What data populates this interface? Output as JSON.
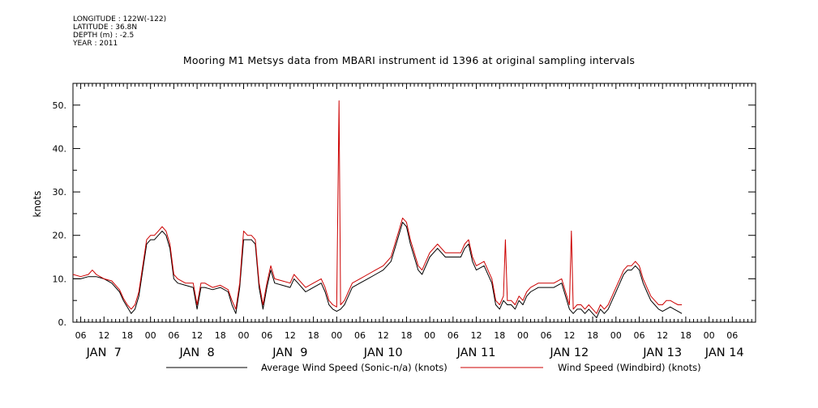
{
  "meta": {
    "longitude": "LONGITUDE : 122W(-122)",
    "latitude": "LATITUDE : 36.8N",
    "depth": "DEPTH (m) : -2.5",
    "year": "YEAR : 2011"
  },
  "chart_data": {
    "type": "line",
    "title": "Mooring M1 Metsys data from MBARI instrument id 1396 at original sampling intervals",
    "ylabel": "knots",
    "xlabel": "",
    "ylim": [
      0,
      55
    ],
    "yticks": [
      0,
      10,
      20,
      30,
      40,
      50
    ],
    "ytick_labels": [
      "0.",
      "10.",
      "20.",
      "30.",
      "40.",
      "50."
    ],
    "xlim_hours": [
      4,
      180
    ],
    "x_units": "hours since 2011-01-07 00:00",
    "xtick_hour_labels": [
      {
        "x": 6,
        "label": "06"
      },
      {
        "x": 12,
        "label": "12"
      },
      {
        "x": 18,
        "label": "18"
      },
      {
        "x": 24,
        "label": "00"
      },
      {
        "x": 30,
        "label": "06"
      },
      {
        "x": 36,
        "label": "12"
      },
      {
        "x": 42,
        "label": "18"
      },
      {
        "x": 48,
        "label": "00"
      },
      {
        "x": 54,
        "label": "06"
      },
      {
        "x": 60,
        "label": "12"
      },
      {
        "x": 66,
        "label": "18"
      },
      {
        "x": 72,
        "label": "00"
      },
      {
        "x": 78,
        "label": "06"
      },
      {
        "x": 84,
        "label": "12"
      },
      {
        "x": 90,
        "label": "18"
      },
      {
        "x": 96,
        "label": "00"
      },
      {
        "x": 102,
        "label": "06"
      },
      {
        "x": 108,
        "label": "12"
      },
      {
        "x": 114,
        "label": "18"
      },
      {
        "x": 120,
        "label": "00"
      },
      {
        "x": 126,
        "label": "06"
      },
      {
        "x": 132,
        "label": "12"
      },
      {
        "x": 138,
        "label": "18"
      },
      {
        "x": 144,
        "label": "00"
      },
      {
        "x": 150,
        "label": "06"
      },
      {
        "x": 156,
        "label": "12"
      },
      {
        "x": 162,
        "label": "18"
      },
      {
        "x": 168,
        "label": "00"
      },
      {
        "x": 174,
        "label": "06"
      }
    ],
    "day_labels": [
      {
        "x": 12,
        "label": "JAN  7"
      },
      {
        "x": 36,
        "label": "JAN  8"
      },
      {
        "x": 60,
        "label": "JAN  9"
      },
      {
        "x": 84,
        "label": "JAN 10"
      },
      {
        "x": 108,
        "label": "JAN 11"
      },
      {
        "x": 132,
        "label": "JAN 12"
      },
      {
        "x": 156,
        "label": "JAN 13"
      },
      {
        "x": 172,
        "label": "JAN 14"
      }
    ],
    "legend_position": "bottom",
    "series": [
      {
        "name": "Average Wind Speed (Sonic-n/a) (knots)",
        "color": "#000000",
        "points": [
          [
            4,
            10
          ],
          [
            6,
            10
          ],
          [
            8,
            10.5
          ],
          [
            10,
            10.5
          ],
          [
            12,
            10
          ],
          [
            14,
            9
          ],
          [
            16,
            7
          ],
          [
            17,
            5
          ],
          [
            18,
            3.5
          ],
          [
            19,
            2
          ],
          [
            20,
            3
          ],
          [
            21,
            6
          ],
          [
            22,
            12
          ],
          [
            23,
            18
          ],
          [
            24,
            19
          ],
          [
            25,
            19
          ],
          [
            26,
            20
          ],
          [
            27,
            21
          ],
          [
            28,
            20
          ],
          [
            29,
            17
          ],
          [
            30,
            10
          ],
          [
            31,
            9
          ],
          [
            33,
            8.5
          ],
          [
            35,
            8
          ],
          [
            36,
            3
          ],
          [
            37,
            8
          ],
          [
            38,
            8
          ],
          [
            40,
            7.5
          ],
          [
            42,
            8
          ],
          [
            44,
            7
          ],
          [
            45,
            4
          ],
          [
            46,
            2
          ],
          [
            47,
            8
          ],
          [
            48,
            19
          ],
          [
            49,
            19
          ],
          [
            50,
            19
          ],
          [
            51,
            18
          ],
          [
            52,
            8
          ],
          [
            53,
            3
          ],
          [
            54,
            8
          ],
          [
            55,
            12
          ],
          [
            56,
            9
          ],
          [
            58,
            8.5
          ],
          [
            60,
            8
          ],
          [
            61,
            10
          ],
          [
            62,
            9
          ],
          [
            64,
            7
          ],
          [
            66,
            8
          ],
          [
            68,
            9
          ],
          [
            69,
            7
          ],
          [
            70,
            4
          ],
          [
            71,
            3
          ],
          [
            72,
            2.5
          ],
          [
            73,
            3
          ],
          [
            74,
            4
          ],
          [
            75,
            6
          ],
          [
            76,
            8
          ],
          [
            78,
            9
          ],
          [
            80,
            10
          ],
          [
            82,
            11
          ],
          [
            84,
            12
          ],
          [
            86,
            14
          ],
          [
            87,
            17
          ],
          [
            88,
            20
          ],
          [
            89,
            23
          ],
          [
            90,
            22
          ],
          [
            91,
            18
          ],
          [
            92,
            15
          ],
          [
            93,
            12
          ],
          [
            94,
            11
          ],
          [
            96,
            15
          ],
          [
            98,
            17
          ],
          [
            100,
            15
          ],
          [
            102,
            15
          ],
          [
            104,
            15
          ],
          [
            105,
            17
          ],
          [
            106,
            18
          ],
          [
            107,
            14
          ],
          [
            108,
            12
          ],
          [
            110,
            13
          ],
          [
            112,
            9
          ],
          [
            113,
            4
          ],
          [
            114,
            3
          ],
          [
            115,
            5
          ],
          [
            116,
            4
          ],
          [
            117,
            4
          ],
          [
            118,
            3
          ],
          [
            119,
            5
          ],
          [
            120,
            4
          ],
          [
            121,
            6
          ],
          [
            122,
            7
          ],
          [
            124,
            8
          ],
          [
            126,
            8
          ],
          [
            128,
            8
          ],
          [
            130,
            9
          ],
          [
            131,
            6
          ],
          [
            132,
            3
          ],
          [
            133,
            2
          ],
          [
            134,
            3
          ],
          [
            135,
            3
          ],
          [
            136,
            2
          ],
          [
            137,
            3
          ],
          [
            138,
            2
          ],
          [
            139,
            1
          ],
          [
            140,
            3
          ],
          [
            141,
            2
          ],
          [
            142,
            3
          ],
          [
            143,
            5
          ],
          [
            144,
            7
          ],
          [
            145,
            9
          ],
          [
            146,
            11
          ],
          [
            147,
            12
          ],
          [
            148,
            12
          ],
          [
            149,
            13
          ],
          [
            150,
            12
          ],
          [
            151,
            9
          ],
          [
            152,
            7
          ],
          [
            153,
            5
          ],
          [
            154,
            4
          ],
          [
            155,
            3
          ],
          [
            156,
            2.5
          ],
          [
            157,
            3
          ],
          [
            158,
            3.5
          ],
          [
            159,
            3
          ],
          [
            160,
            2.5
          ],
          [
            161,
            2
          ]
        ]
      },
      {
        "name": "Wind Speed (Windbird) (knots)",
        "color": "#cc0000",
        "points": [
          [
            4,
            11
          ],
          [
            6,
            10.5
          ],
          [
            8,
            11
          ],
          [
            9,
            12
          ],
          [
            10,
            11
          ],
          [
            12,
            10
          ],
          [
            14,
            9.5
          ],
          [
            16,
            7.5
          ],
          [
            17,
            5.5
          ],
          [
            18,
            4
          ],
          [
            19,
            3
          ],
          [
            20,
            4
          ],
          [
            21,
            7
          ],
          [
            22,
            13
          ],
          [
            23,
            19
          ],
          [
            24,
            20
          ],
          [
            25,
            20
          ],
          [
            26,
            21
          ],
          [
            27,
            22
          ],
          [
            28,
            21
          ],
          [
            29,
            18
          ],
          [
            30,
            11
          ],
          [
            31,
            10
          ],
          [
            33,
            9
          ],
          [
            35,
            9
          ],
          [
            36,
            4
          ],
          [
            37,
            9
          ],
          [
            38,
            9
          ],
          [
            40,
            8
          ],
          [
            42,
            8.5
          ],
          [
            44,
            7.5
          ],
          [
            45,
            5
          ],
          [
            46,
            3
          ],
          [
            47,
            9
          ],
          [
            48,
            21
          ],
          [
            49,
            20
          ],
          [
            50,
            20
          ],
          [
            51,
            19
          ],
          [
            52,
            9
          ],
          [
            53,
            4
          ],
          [
            54,
            9
          ],
          [
            55,
            13
          ],
          [
            56,
            10
          ],
          [
            58,
            9.5
          ],
          [
            60,
            9
          ],
          [
            61,
            11
          ],
          [
            62,
            10
          ],
          [
            64,
            8
          ],
          [
            66,
            9
          ],
          [
            68,
            10
          ],
          [
            69,
            8
          ],
          [
            70,
            5
          ],
          [
            71,
            4
          ],
          [
            72,
            3.5
          ],
          [
            72.6,
            51
          ],
          [
            73,
            4
          ],
          [
            74,
            5
          ],
          [
            75,
            7
          ],
          [
            76,
            9
          ],
          [
            78,
            10
          ],
          [
            80,
            11
          ],
          [
            82,
            12
          ],
          [
            84,
            13
          ],
          [
            86,
            15
          ],
          [
            87,
            18
          ],
          [
            88,
            21
          ],
          [
            89,
            24
          ],
          [
            90,
            23
          ],
          [
            91,
            19
          ],
          [
            92,
            16
          ],
          [
            93,
            13
          ],
          [
            94,
            12
          ],
          [
            96,
            16
          ],
          [
            98,
            18
          ],
          [
            100,
            16
          ],
          [
            102,
            16
          ],
          [
            104,
            16
          ],
          [
            105,
            18
          ],
          [
            106,
            19
          ],
          [
            107,
            15
          ],
          [
            108,
            13
          ],
          [
            110,
            14
          ],
          [
            112,
            10
          ],
          [
            113,
            5
          ],
          [
            114,
            4
          ],
          [
            115,
            6
          ],
          [
            115.5,
            19
          ],
          [
            116,
            5
          ],
          [
            117,
            5
          ],
          [
            118,
            4
          ],
          [
            119,
            6
          ],
          [
            120,
            5
          ],
          [
            121,
            7
          ],
          [
            122,
            8
          ],
          [
            124,
            9
          ],
          [
            126,
            9
          ],
          [
            128,
            9
          ],
          [
            130,
            10
          ],
          [
            131,
            7
          ],
          [
            132,
            4
          ],
          [
            132.5,
            21
          ],
          [
            133,
            3
          ],
          [
            134,
            4
          ],
          [
            135,
            4
          ],
          [
            136,
            3
          ],
          [
            137,
            4
          ],
          [
            138,
            3
          ],
          [
            139,
            2
          ],
          [
            140,
            4
          ],
          [
            141,
            3
          ],
          [
            142,
            4
          ],
          [
            143,
            6
          ],
          [
            144,
            8
          ],
          [
            145,
            10
          ],
          [
            146,
            12
          ],
          [
            147,
            13
          ],
          [
            148,
            13
          ],
          [
            149,
            14
          ],
          [
            150,
            13
          ],
          [
            151,
            10
          ],
          [
            152,
            8
          ],
          [
            153,
            6
          ],
          [
            154,
            5
          ],
          [
            155,
            4
          ],
          [
            156,
            4
          ],
          [
            157,
            5
          ],
          [
            158,
            5
          ],
          [
            159,
            4.5
          ],
          [
            160,
            4
          ],
          [
            161,
            4
          ]
        ]
      }
    ]
  }
}
